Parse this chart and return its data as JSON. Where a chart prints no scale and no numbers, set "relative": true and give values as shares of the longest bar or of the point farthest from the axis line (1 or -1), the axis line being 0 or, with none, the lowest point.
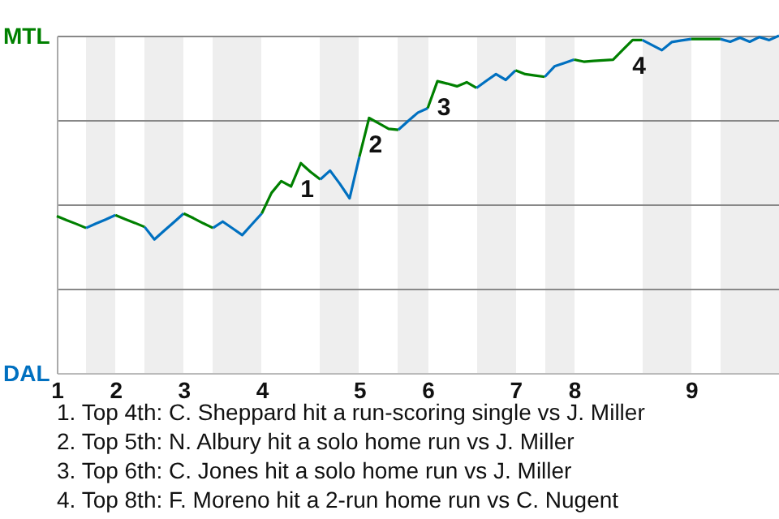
{
  "chart_data": {
    "type": "line",
    "relative": true,
    "categories": [
      "1",
      null,
      null,
      null,
      null,
      null,
      "2",
      null,
      null,
      null,
      null,
      null,
      null,
      "3",
      null,
      null,
      null,
      null,
      null,
      null,
      null,
      "4",
      null,
      null,
      null,
      null,
      null,
      null,
      null,
      null,
      null,
      "5",
      null,
      null,
      null,
      null,
      null,
      null,
      "6",
      null,
      null,
      null,
      null,
      null,
      null,
      null,
      null,
      "7",
      null,
      null,
      null,
      null,
      null,
      "8",
      null,
      null,
      null,
      null,
      null,
      null,
      null,
      null,
      null,
      null,
      null,
      "9",
      null,
      null,
      null,
      null,
      null,
      null,
      null,
      null,
      null
    ],
    "grid": "y",
    "series": [
      {
        "color": "#008000",
        "values": [
          0.465,
          0.453,
          0.442,
          0.43,
          null,
          null,
          null,
          null,
          null,
          null,
          null,
          null,
          null,
          null,
          null,
          null,
          null,
          null,
          null,
          null,
          null,
          null,
          null,
          null,
          null,
          null,
          null,
          null,
          null,
          null,
          null,
          null,
          null,
          null,
          null,
          null,
          null,
          null,
          null,
          null,
          null,
          null,
          null,
          null,
          null,
          null,
          null,
          null,
          null,
          null,
          null,
          null,
          null,
          null,
          null,
          null,
          null,
          null,
          null,
          null,
          null,
          null,
          null,
          null,
          null,
          null,
          null,
          null,
          null,
          null,
          null,
          null,
          null,
          null,
          null
        ]
      },
      {
        "color": "#0070c0",
        "values": [
          null,
          null,
          null,
          0.43,
          0.443,
          0.455,
          0.468,
          null,
          null,
          null,
          null,
          null,
          null,
          null,
          null,
          null,
          null,
          null,
          null,
          null,
          null,
          null,
          null,
          null,
          null,
          null,
          null,
          null,
          null,
          null,
          null,
          null,
          null,
          null,
          null,
          null,
          null,
          null,
          null,
          null,
          null,
          null,
          null,
          null,
          null,
          null,
          null,
          null,
          null,
          null,
          null,
          null,
          null,
          null,
          null,
          null,
          null,
          null,
          null,
          null,
          null,
          null,
          null,
          null,
          null,
          null,
          null,
          null,
          null,
          null,
          null,
          null,
          null,
          null,
          null
        ]
      },
      {
        "color": "#008000",
        "values": [
          null,
          null,
          null,
          null,
          null,
          null,
          0.468,
          0.456,
          0.445,
          0.433,
          null,
          null,
          null,
          null,
          null,
          null,
          null,
          null,
          null,
          null,
          null,
          null,
          null,
          null,
          null,
          null,
          null,
          null,
          null,
          null,
          null,
          null,
          null,
          null,
          null,
          null,
          null,
          null,
          null,
          null,
          null,
          null,
          null,
          null,
          null,
          null,
          null,
          null,
          null,
          null,
          null,
          null,
          null,
          null,
          null,
          null,
          null,
          null,
          null,
          null,
          null,
          null,
          null,
          null,
          null,
          null,
          null,
          null,
          null,
          null,
          null,
          null,
          null,
          null,
          null
        ]
      },
      {
        "color": "#0070c0",
        "values": [
          null,
          null,
          null,
          null,
          null,
          null,
          null,
          null,
          null,
          0.433,
          0.396,
          0.422,
          0.447,
          0.473,
          null,
          null,
          null,
          null,
          null,
          null,
          null,
          null,
          null,
          null,
          null,
          null,
          null,
          null,
          null,
          null,
          null,
          null,
          null,
          null,
          null,
          null,
          null,
          null,
          null,
          null,
          null,
          null,
          null,
          null,
          null,
          null,
          null,
          null,
          null,
          null,
          null,
          null,
          null,
          null,
          null,
          null,
          null,
          null,
          null,
          null,
          null,
          null,
          null,
          null,
          null,
          null,
          null,
          null,
          null,
          null,
          null,
          null,
          null,
          null,
          null
        ]
      },
      {
        "color": "#008000",
        "values": [
          null,
          null,
          null,
          null,
          null,
          null,
          null,
          null,
          null,
          null,
          null,
          null,
          null,
          0.473,
          0.459,
          0.444,
          0.43,
          null,
          null,
          null,
          null,
          null,
          null,
          null,
          null,
          null,
          null,
          null,
          null,
          null,
          null,
          null,
          null,
          null,
          null,
          null,
          null,
          null,
          null,
          null,
          null,
          null,
          null,
          null,
          null,
          null,
          null,
          null,
          null,
          null,
          null,
          null,
          null,
          null,
          null,
          null,
          null,
          null,
          null,
          null,
          null,
          null,
          null,
          null,
          null,
          null,
          null,
          null,
          null,
          null,
          null,
          null,
          null,
          null,
          null
        ]
      },
      {
        "color": "#0070c0",
        "values": [
          null,
          null,
          null,
          null,
          null,
          null,
          null,
          null,
          null,
          null,
          null,
          null,
          null,
          null,
          null,
          null,
          0.43,
          0.449,
          0.429,
          0.409,
          0.441,
          0.473,
          null,
          null,
          null,
          null,
          null,
          null,
          null,
          null,
          null,
          null,
          null,
          null,
          null,
          null,
          null,
          null,
          null,
          null,
          null,
          null,
          null,
          null,
          null,
          null,
          null,
          null,
          null,
          null,
          null,
          null,
          null,
          null,
          null,
          null,
          null,
          null,
          null,
          null,
          null,
          null,
          null,
          null,
          null,
          null,
          null,
          null,
          null,
          null,
          null,
          null,
          null,
          null,
          null
        ]
      },
      {
        "color": "#008000",
        "values": [
          null,
          null,
          null,
          null,
          null,
          null,
          null,
          null,
          null,
          null,
          null,
          null,
          null,
          null,
          null,
          null,
          null,
          null,
          null,
          null,
          null,
          0.473,
          0.534,
          0.569,
          0.553,
          0.622,
          0.596,
          0.574,
          null,
          null,
          null,
          null,
          null,
          null,
          null,
          null,
          null,
          null,
          null,
          null,
          null,
          null,
          null,
          null,
          null,
          null,
          null,
          null,
          null,
          null,
          null,
          null,
          null,
          null,
          null,
          null,
          null,
          null,
          null,
          null,
          null,
          null,
          null,
          null,
          null,
          null,
          null,
          null,
          null,
          null,
          null,
          null,
          null,
          null,
          null
        ]
      },
      {
        "color": "#0070c0",
        "values": [
          null,
          null,
          null,
          null,
          null,
          null,
          null,
          null,
          null,
          null,
          null,
          null,
          null,
          null,
          null,
          null,
          null,
          null,
          null,
          null,
          null,
          null,
          null,
          null,
          null,
          null,
          null,
          0.574,
          0.6,
          0.561,
          0.518,
          0.641,
          null,
          null,
          null,
          null,
          null,
          null,
          null,
          null,
          null,
          null,
          null,
          null,
          null,
          null,
          null,
          null,
          null,
          null,
          null,
          null,
          null,
          null,
          null,
          null,
          null,
          null,
          null,
          null,
          null,
          null,
          null,
          null,
          null,
          null,
          null,
          null,
          null,
          null,
          null,
          null,
          null,
          null,
          null
        ]
      },
      {
        "color": "#008000",
        "values": [
          null,
          null,
          null,
          null,
          null,
          null,
          null,
          null,
          null,
          null,
          null,
          null,
          null,
          null,
          null,
          null,
          null,
          null,
          null,
          null,
          null,
          null,
          null,
          null,
          null,
          null,
          null,
          null,
          null,
          null,
          null,
          0.641,
          0.756,
          0.74,
          0.724,
          0.721,
          null,
          null,
          null,
          null,
          null,
          null,
          null,
          null,
          null,
          null,
          null,
          null,
          null,
          null,
          null,
          null,
          null,
          null,
          null,
          null,
          null,
          null,
          null,
          null,
          null,
          null,
          null,
          null,
          null,
          null,
          null,
          null,
          null,
          null,
          null,
          null,
          null,
          null,
          null
        ]
      },
      {
        "color": "#0070c0",
        "values": [
          null,
          null,
          null,
          null,
          null,
          null,
          null,
          null,
          null,
          null,
          null,
          null,
          null,
          null,
          null,
          null,
          null,
          null,
          null,
          null,
          null,
          null,
          null,
          null,
          null,
          null,
          null,
          null,
          null,
          null,
          null,
          null,
          null,
          null,
          null,
          0.721,
          0.747,
          0.772,
          0.785,
          null,
          null,
          null,
          null,
          null,
          null,
          null,
          null,
          null,
          null,
          null,
          null,
          null,
          null,
          null,
          null,
          null,
          null,
          null,
          null,
          null,
          null,
          null,
          null,
          null,
          null,
          null,
          null,
          null,
          null,
          null,
          null,
          null,
          null,
          null,
          null
        ]
      },
      {
        "color": "#008000",
        "values": [
          null,
          null,
          null,
          null,
          null,
          null,
          null,
          null,
          null,
          null,
          null,
          null,
          null,
          null,
          null,
          null,
          null,
          null,
          null,
          null,
          null,
          null,
          null,
          null,
          null,
          null,
          null,
          null,
          null,
          null,
          null,
          null,
          null,
          null,
          null,
          null,
          null,
          null,
          0.785,
          0.865,
          0.858,
          0.85,
          0.862,
          0.845,
          null,
          null,
          null,
          null,
          null,
          null,
          null,
          null,
          null,
          null,
          null,
          null,
          null,
          null,
          null,
          null,
          null,
          null,
          null,
          null,
          null,
          null,
          null,
          null,
          null,
          null,
          null,
          null,
          null,
          null,
          null
        ]
      },
      {
        "color": "#0070c0",
        "values": [
          null,
          null,
          null,
          null,
          null,
          null,
          null,
          null,
          null,
          null,
          null,
          null,
          null,
          null,
          null,
          null,
          null,
          null,
          null,
          null,
          null,
          null,
          null,
          null,
          null,
          null,
          null,
          null,
          null,
          null,
          null,
          null,
          null,
          null,
          null,
          null,
          null,
          null,
          null,
          null,
          null,
          null,
          null,
          0.845,
          0.866,
          0.886,
          0.869,
          0.897,
          null,
          null,
          null,
          null,
          null,
          null,
          null,
          null,
          null,
          null,
          null,
          null,
          null,
          null,
          null,
          null,
          null,
          null,
          null,
          null,
          null,
          null,
          null,
          null,
          null,
          null,
          null
        ]
      },
      {
        "color": "#008000",
        "values": [
          null,
          null,
          null,
          null,
          null,
          null,
          null,
          null,
          null,
          null,
          null,
          null,
          null,
          null,
          null,
          null,
          null,
          null,
          null,
          null,
          null,
          null,
          null,
          null,
          null,
          null,
          null,
          null,
          null,
          null,
          null,
          null,
          null,
          null,
          null,
          null,
          null,
          null,
          null,
          null,
          null,
          null,
          null,
          null,
          null,
          null,
          null,
          0.897,
          0.886,
          0.882,
          0.878,
          null,
          null,
          null,
          null,
          null,
          null,
          null,
          null,
          null,
          null,
          null,
          null,
          null,
          null,
          null,
          null,
          null,
          null,
          null,
          null,
          null,
          null,
          null,
          null
        ]
      },
      {
        "color": "#0070c0",
        "values": [
          null,
          null,
          null,
          null,
          null,
          null,
          null,
          null,
          null,
          null,
          null,
          null,
          null,
          null,
          null,
          null,
          null,
          null,
          null,
          null,
          null,
          null,
          null,
          null,
          null,
          null,
          null,
          null,
          null,
          null,
          null,
          null,
          null,
          null,
          null,
          null,
          null,
          null,
          null,
          null,
          null,
          null,
          null,
          null,
          null,
          null,
          null,
          null,
          null,
          null,
          0.878,
          0.909,
          0.919,
          0.929,
          null,
          null,
          null,
          null,
          null,
          null,
          null,
          null,
          null,
          null,
          null,
          null,
          null,
          null,
          null,
          null,
          null,
          null,
          null,
          null,
          null
        ]
      },
      {
        "color": "#008000",
        "values": [
          null,
          null,
          null,
          null,
          null,
          null,
          null,
          null,
          null,
          null,
          null,
          null,
          null,
          null,
          null,
          null,
          null,
          null,
          null,
          null,
          null,
          null,
          null,
          null,
          null,
          null,
          null,
          null,
          null,
          null,
          null,
          null,
          null,
          null,
          null,
          null,
          null,
          null,
          null,
          null,
          null,
          null,
          null,
          null,
          null,
          null,
          null,
          null,
          null,
          null,
          null,
          null,
          null,
          0.929,
          0.923,
          0.925,
          0.927,
          0.929,
          0.958,
          0.987,
          0.987,
          null,
          null,
          null,
          null,
          null,
          null,
          null,
          null,
          null,
          null,
          null,
          null,
          null,
          null
        ]
      },
      {
        "color": "#0070c0",
        "values": [
          null,
          null,
          null,
          null,
          null,
          null,
          null,
          null,
          null,
          null,
          null,
          null,
          null,
          null,
          null,
          null,
          null,
          null,
          null,
          null,
          null,
          null,
          null,
          null,
          null,
          null,
          null,
          null,
          null,
          null,
          null,
          null,
          null,
          null,
          null,
          null,
          null,
          null,
          null,
          null,
          null,
          null,
          null,
          null,
          null,
          null,
          null,
          null,
          null,
          null,
          null,
          null,
          null,
          null,
          null,
          null,
          null,
          null,
          null,
          null,
          0.987,
          0.972,
          0.957,
          0.981,
          0.986,
          0.99,
          null,
          null,
          null,
          null,
          null,
          null,
          null,
          null,
          null
        ]
      },
      {
        "color": "#008000",
        "values": [
          null,
          null,
          null,
          null,
          null,
          null,
          null,
          null,
          null,
          null,
          null,
          null,
          null,
          null,
          null,
          null,
          null,
          null,
          null,
          null,
          null,
          null,
          null,
          null,
          null,
          null,
          null,
          null,
          null,
          null,
          null,
          null,
          null,
          null,
          null,
          null,
          null,
          null,
          null,
          null,
          null,
          null,
          null,
          null,
          null,
          null,
          null,
          null,
          null,
          null,
          null,
          null,
          null,
          null,
          null,
          null,
          null,
          null,
          null,
          null,
          null,
          null,
          null,
          null,
          null,
          0.99,
          0.99,
          0.99,
          0.99,
          null,
          null,
          null,
          null,
          null,
          null
        ]
      },
      {
        "color": "#0070c0",
        "values": [
          null,
          null,
          null,
          null,
          null,
          null,
          null,
          null,
          null,
          null,
          null,
          null,
          null,
          null,
          null,
          null,
          null,
          null,
          null,
          null,
          null,
          null,
          null,
          null,
          null,
          null,
          null,
          null,
          null,
          null,
          null,
          null,
          null,
          null,
          null,
          null,
          null,
          null,
          null,
          null,
          null,
          null,
          null,
          null,
          null,
          null,
          null,
          null,
          null,
          null,
          null,
          null,
          null,
          null,
          null,
          null,
          null,
          null,
          null,
          null,
          null,
          null,
          null,
          null,
          null,
          null,
          null,
          null,
          0.99,
          0.982,
          0.994,
          0.982,
          0.996,
          0.987,
          1
        ]
      }
    ],
    "annotations": [
      "MTL",
      "DAL",
      "1",
      "2",
      "3",
      "4",
      "1. Top 4th: C. Sheppard hit a run-scoring single vs J. Miller",
      "2. Top 5th: N. Albury hit a solo home run vs J. Miller",
      "3. Top 6th: C. Jones hit a solo home run vs J. Miller",
      "4. Top 8th: F. Moreno hit a 2-run home run vs C. Nugent"
    ]
  }
}
